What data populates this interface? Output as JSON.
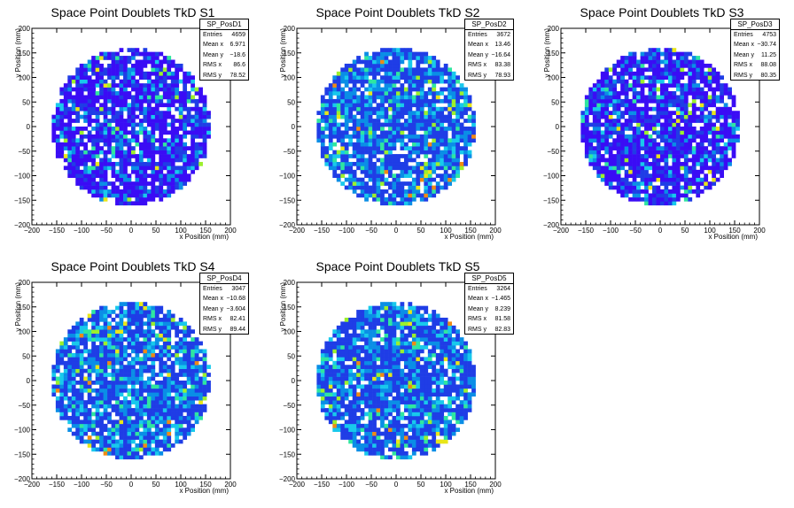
{
  "chart_data": [
    {
      "type": "heatmap",
      "title": "Space Point Doublets TkD S1",
      "xlabel": "x Position (mm)",
      "ylabel": "y Position (mm)",
      "xlim": [
        -200,
        200
      ],
      "ylim": [
        -200,
        200
      ],
      "xticks": [
        -200,
        -150,
        -100,
        -50,
        0,
        50,
        100,
        150,
        200
      ],
      "yticks": [
        -200,
        -150,
        -100,
        -50,
        0,
        50,
        100,
        150,
        200
      ],
      "bin_width_mm": 8,
      "active_radius_mm": 160,
      "colors": [
        "#3a0cf5",
        "#1f3de6",
        "#0a8ee6",
        "#18c9ec",
        "#2fe6a0",
        "#9cf02c",
        "#e8e619",
        "#f08a14",
        "#e6281e"
      ],
      "stats": {
        "name": "SP_PosD1",
        "rows": [
          {
            "label": "Entries",
            "value": "4659"
          },
          {
            "label": "Mean x",
            "value": "6.971"
          },
          {
            "label": "Mean y",
            "value": "−18.6"
          },
          {
            "label": "RMS x",
            "value": "86.6"
          },
          {
            "label": "RMS y",
            "value": "78.52"
          }
        ]
      }
    },
    {
      "type": "heatmap",
      "title": "Space Point Doublets TkD S2",
      "xlabel": "x Position (mm)",
      "ylabel": "y Position (mm)",
      "xlim": [
        -200,
        200
      ],
      "ylim": [
        -200,
        200
      ],
      "xticks": [
        -200,
        -150,
        -100,
        -50,
        0,
        50,
        100,
        150,
        200
      ],
      "yticks": [
        -200,
        -150,
        -100,
        -50,
        0,
        50,
        100,
        150,
        200
      ],
      "bin_width_mm": 8,
      "active_radius_mm": 160,
      "colors": [
        "#1f3de6",
        "#0a8ee6",
        "#18c9ec",
        "#2fe6a0",
        "#9cf02c",
        "#e8e619",
        "#f08a14",
        "#e6281e"
      ],
      "stats": {
        "name": "SP_PosD2",
        "rows": [
          {
            "label": "Entries",
            "value": "3672"
          },
          {
            "label": "Mean x",
            "value": "13.46"
          },
          {
            "label": "Mean y",
            "value": "−16.64"
          },
          {
            "label": "RMS x",
            "value": "83.38"
          },
          {
            "label": "RMS y",
            "value": "78.93"
          }
        ]
      }
    },
    {
      "type": "heatmap",
      "title": "Space Point Doublets TkD S3",
      "xlabel": "x Position (mm)",
      "ylabel": "y Position (mm)",
      "xlim": [
        -200,
        200
      ],
      "ylim": [
        -200,
        200
      ],
      "xticks": [
        -200,
        -150,
        -100,
        -50,
        0,
        50,
        100,
        150,
        200
      ],
      "yticks": [
        -200,
        -150,
        -100,
        -50,
        0,
        50,
        100,
        150,
        200
      ],
      "bin_width_mm": 8,
      "active_radius_mm": 160,
      "colors": [
        "#3a0cf5",
        "#1f3de6",
        "#0a8ee6",
        "#18c9ec",
        "#2fe6a0",
        "#9cf02c",
        "#e8e619"
      ],
      "stats": {
        "name": "SP_PosD3",
        "rows": [
          {
            "label": "Entries",
            "value": "4753"
          },
          {
            "label": "Mean x",
            "value": "−30.74"
          },
          {
            "label": "Mean y",
            "value": "11.25"
          },
          {
            "label": "RMS x",
            "value": "88.08"
          },
          {
            "label": "RMS y",
            "value": "80.35"
          }
        ]
      }
    },
    {
      "type": "heatmap",
      "title": "Space Point Doublets TkD S4",
      "xlabel": "x Position (mm)",
      "ylabel": "y Position (mm)",
      "xlim": [
        -200,
        200
      ],
      "ylim": [
        -200,
        200
      ],
      "xticks": [
        -200,
        -150,
        -100,
        -50,
        0,
        50,
        100,
        150,
        200
      ],
      "yticks": [
        -200,
        -150,
        -100,
        -50,
        0,
        50,
        100,
        150,
        200
      ],
      "bin_width_mm": 8,
      "active_radius_mm": 160,
      "colors": [
        "#1f3de6",
        "#0a8ee6",
        "#18c9ec",
        "#2fe6a0",
        "#9cf02c",
        "#e8e619",
        "#f08a14",
        "#e6281e"
      ],
      "stats": {
        "name": "SP_PosD4",
        "rows": [
          {
            "label": "Entries",
            "value": "3047"
          },
          {
            "label": "Mean x",
            "value": "−10.68"
          },
          {
            "label": "Mean y",
            "value": "−3.604"
          },
          {
            "label": "RMS x",
            "value": "82.41"
          },
          {
            "label": "RMS y",
            "value": "89.44"
          }
        ]
      }
    },
    {
      "type": "heatmap",
      "title": "Space Point Doublets TkD S5",
      "xlabel": "x Position (mm)",
      "ylabel": "y Position (mm)",
      "xlim": [
        -200,
        200
      ],
      "ylim": [
        -200,
        200
      ],
      "xticks": [
        -200,
        -150,
        -100,
        -50,
        0,
        50,
        100,
        150,
        200
      ],
      "yticks": [
        -200,
        -150,
        -100,
        -50,
        0,
        50,
        100,
        150,
        200
      ],
      "bin_width_mm": 8,
      "active_radius_mm": 160,
      "colors": [
        "#1f3de6",
        "#0a8ee6",
        "#18c9ec",
        "#2fe6a0",
        "#9cf02c",
        "#e8e619",
        "#f08a14",
        "#e6281e"
      ],
      "stats": {
        "name": "SP_PosD5",
        "rows": [
          {
            "label": "Entries",
            "value": "3264"
          },
          {
            "label": "Mean x",
            "value": "−1.465"
          },
          {
            "label": "Mean y",
            "value": "8.239"
          },
          {
            "label": "RMS x",
            "value": "81.58"
          },
          {
            "label": "RMS y",
            "value": "82.83"
          }
        ]
      }
    }
  ]
}
